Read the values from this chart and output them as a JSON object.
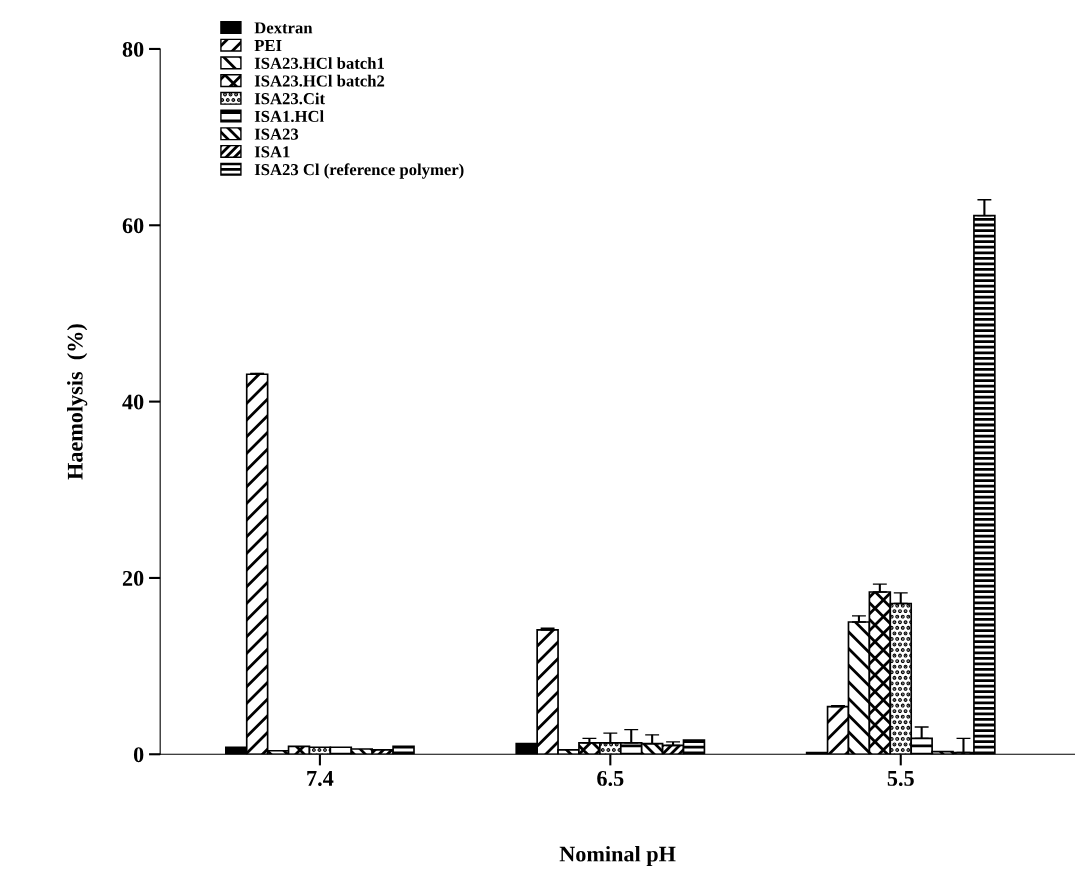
{
  "chart_data": {
    "type": "bar",
    "xlabel": "Nominal pH",
    "ylabel": "Haemolysis  (%)",
    "categories": [
      "7.4",
      "6.5",
      "5.5"
    ],
    "ylim": [
      0,
      80
    ],
    "yticks": [
      0,
      20,
      40,
      60,
      80
    ],
    "grid": false,
    "legend": "top left",
    "series": [
      {
        "name": "Dextran",
        "color": "#000000",
        "values": [
          0.8,
          1.2,
          0.2
        ],
        "errors": [
          null,
          null,
          null
        ]
      },
      {
        "name": "PEI",
        "color": "#000000",
        "values": [
          43.1,
          14.1,
          5.4
        ],
        "errors": [
          0.1,
          0.2,
          0.1
        ]
      },
      {
        "name": "ISA23.HCl batch1",
        "color": "#000000",
        "values": [
          0.4,
          0.5,
          15.0
        ],
        "errors": [
          null,
          null,
          0.7
        ]
      },
      {
        "name": "ISA23.HCl batch2",
        "color": "#000000",
        "values": [
          0.9,
          1.3,
          18.4
        ],
        "errors": [
          null,
          0.5,
          0.9
        ]
      },
      {
        "name": "ISA23.Cit",
        "color": "#000000",
        "values": [
          0.8,
          1.3,
          17.1
        ],
        "errors": [
          null,
          1.1,
          1.2
        ]
      },
      {
        "name": "ISA1.HCl",
        "color": "#000000",
        "values": [
          0.8,
          1.3,
          1.8
        ],
        "errors": [
          null,
          1.5,
          1.3
        ]
      },
      {
        "name": "ISA23",
        "color": "#000000",
        "values": [
          0.6,
          1.2,
          0.3
        ],
        "errors": [
          null,
          1.0,
          null
        ]
      },
      {
        "name": "ISA1",
        "color": "#000000",
        "values": [
          0.5,
          1.0,
          0.2
        ],
        "errors": [
          null,
          0.4,
          1.6
        ]
      },
      {
        "name": "ISA23 Cl (reference polymer)",
        "color": "#000000",
        "values": [
          0.9,
          1.6,
          61.1
        ],
        "errors": [
          null,
          null,
          1.8
        ]
      }
    ]
  }
}
